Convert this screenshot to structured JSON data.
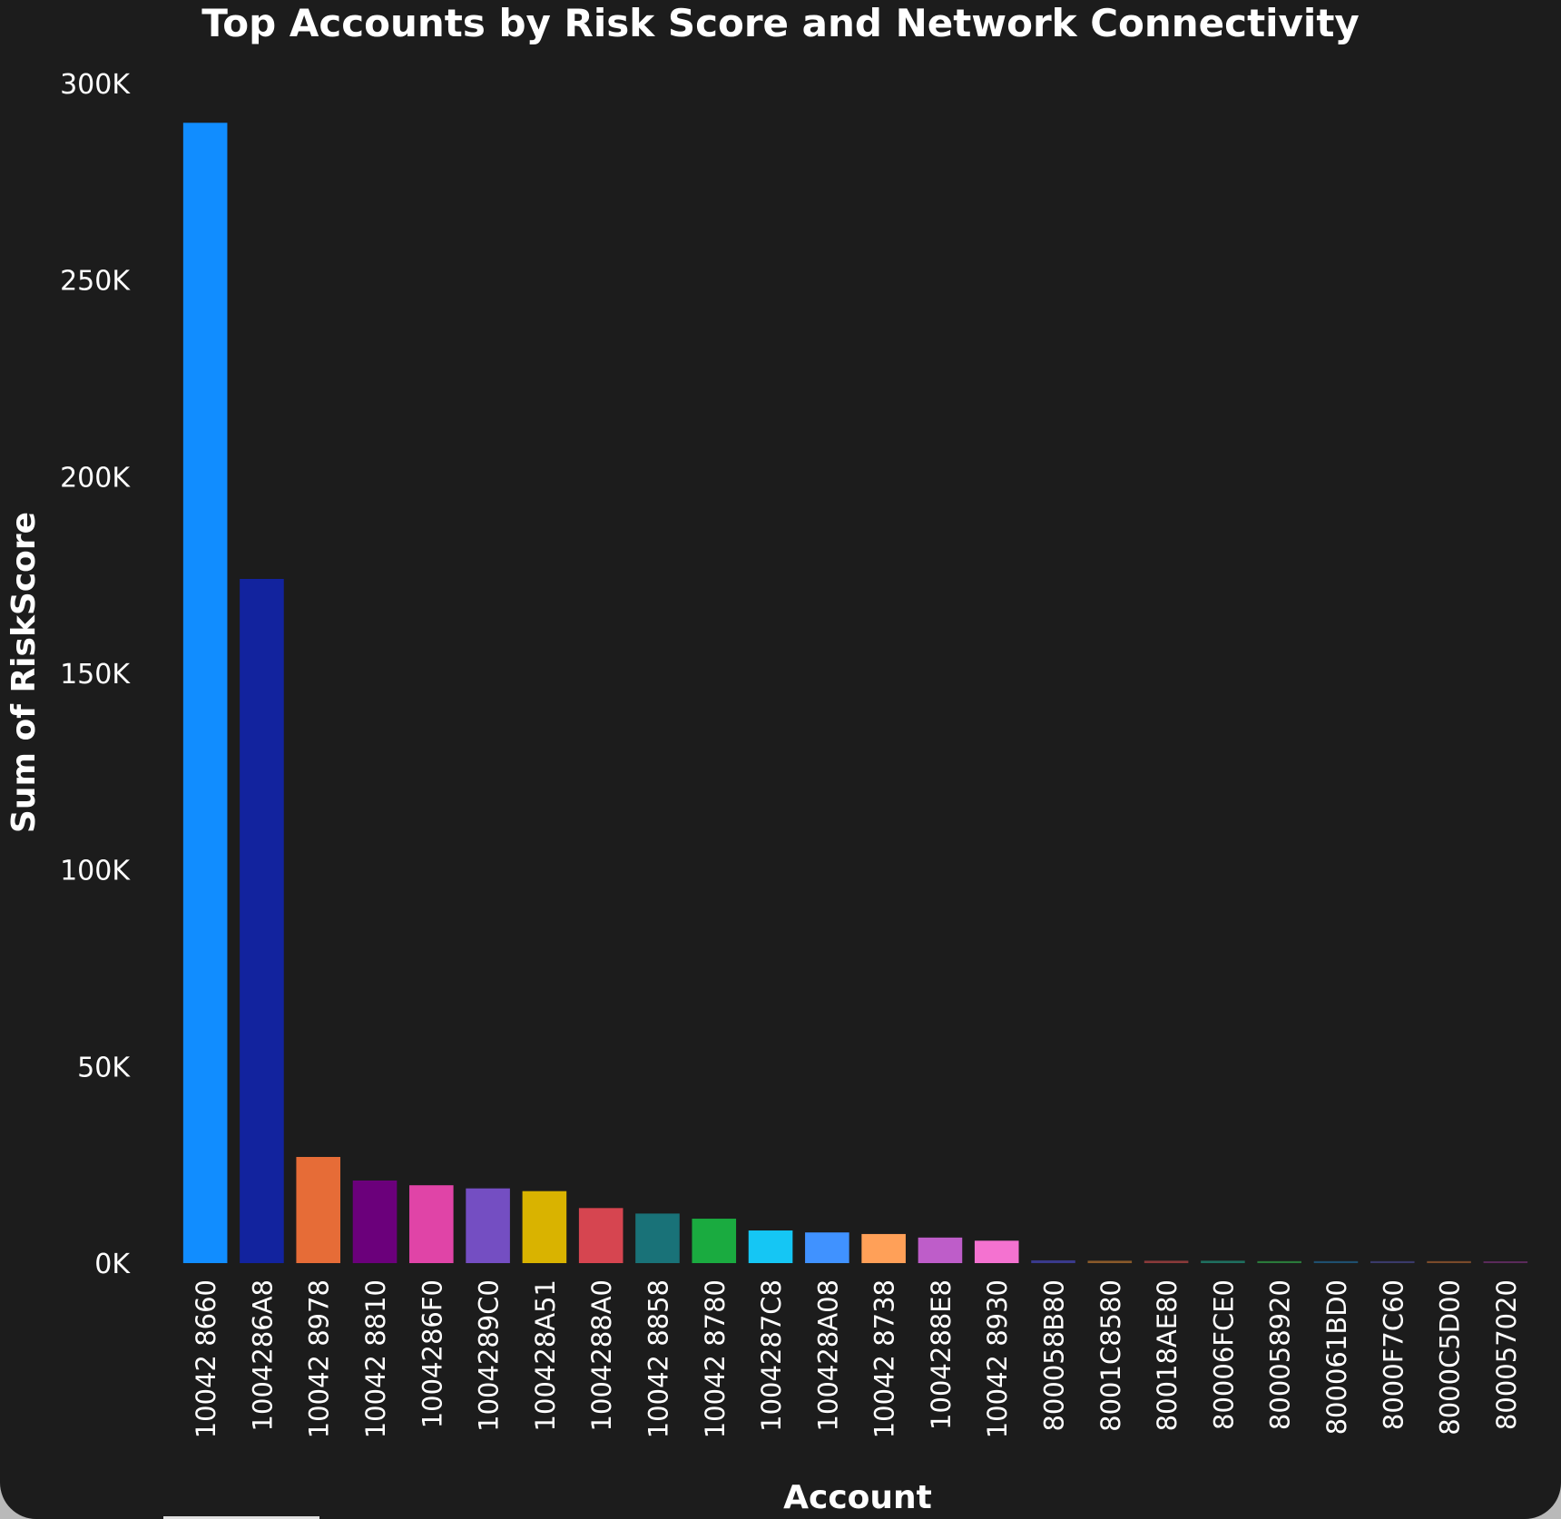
{
  "chart_data": {
    "type": "bar",
    "title": "Top Accounts by Risk Score and Network Connectivity",
    "xlabel": "Account",
    "ylabel": "Sum of RiskScore",
    "ylim": [
      0,
      300000
    ],
    "y_ticks": [
      0,
      50000,
      100000,
      150000,
      200000,
      250000,
      300000
    ],
    "y_tick_labels": [
      "0K",
      "50K",
      "100K",
      "150K",
      "200K",
      "250K",
      "300K"
    ],
    "grid": false,
    "categories": [
      "10042 8660",
      "1004286A8",
      "10042 8978",
      "10042 8810",
      "1004286F0",
      "1004289C0",
      "100428A51",
      "1004288A0",
      "10042 8858",
      "10042 8780",
      "1004287C8",
      "100428A08",
      "10042 8738",
      "1004288E8",
      "10042 8930",
      "800058B80",
      "8001C8580",
      "80018AE80",
      "80006FCE0",
      "800058920",
      "800061BD0",
      "8000F7C60",
      "8000C5D00",
      "800057020"
    ],
    "values": [
      290000,
      174000,
      27000,
      21000,
      19800,
      19000,
      18300,
      14000,
      12600,
      11300,
      8300,
      7800,
      7400,
      6500,
      5700,
      700,
      600,
      600,
      600,
      500,
      500,
      500,
      500,
      400
    ],
    "colors": [
      "#118dff",
      "#12239e",
      "#e66c37",
      "#6b007b",
      "#e044a7",
      "#744ec2",
      "#d9b300",
      "#d64550",
      "#197278",
      "#1aab40",
      "#15c6f4",
      "#4092ff",
      "#ffa058",
      "#be5dc9",
      "#f472d0",
      "#3a3a8c",
      "#8a5a2a",
      "#8a3a3a",
      "#1f6f5f",
      "#2a7a3a",
      "#1f4f6f",
      "#3a3a6a",
      "#7a4a2a",
      "#5a2a5a"
    ]
  }
}
